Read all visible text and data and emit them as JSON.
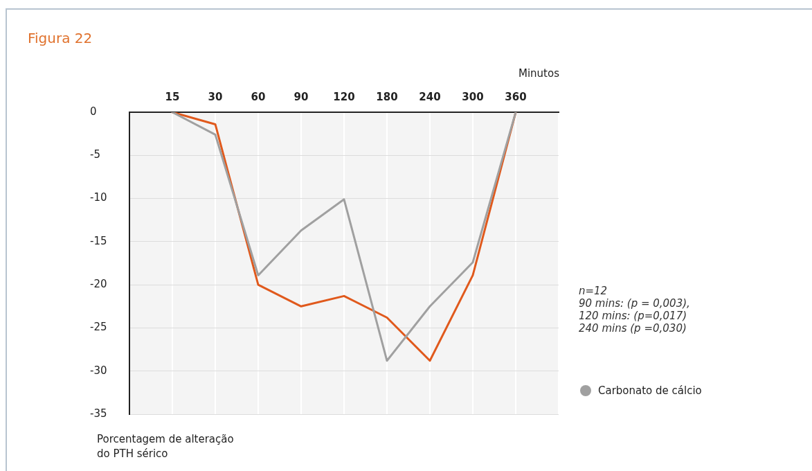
{
  "chart_data": {
    "type": "line",
    "title": "Figura 22",
    "xlabel": "Minutos",
    "ylabel": "Porcentagem de alteração do PTH sérico",
    "annotations": [
      "n=12\n90 mins: (p = 0,003),\n120 mins: (p=0,017)\n240 mins (p =0,030)"
    ],
    "categories": [
      null,
      "15",
      "30",
      "60",
      "90",
      "120",
      "180",
      "240",
      "300",
      "360",
      null
    ],
    "series": [
      {
        "name": "Carbonato de cálcio",
        "color": "#a0a0a0",
        "values": [
          null,
          0,
          -2.6,
          -18.9,
          -13.7,
          -10.1,
          -28.8,
          -22.5,
          -17.4,
          0,
          null
        ]
      },
      {
        "color": "#e0591c",
        "values": [
          null,
          0,
          -1.4,
          -20,
          -22.5,
          -21.3,
          -23.8,
          -28.8,
          -18.9,
          0,
          null
        ]
      }
    ],
    "ylim": [
      -35,
      0
    ],
    "yticks": [
      0,
      -5,
      -10,
      -15,
      -20,
      -25,
      -30,
      -35
    ],
    "grid": true,
    "legend": "right",
    "marker": "none",
    "line_style": "solid"
  }
}
